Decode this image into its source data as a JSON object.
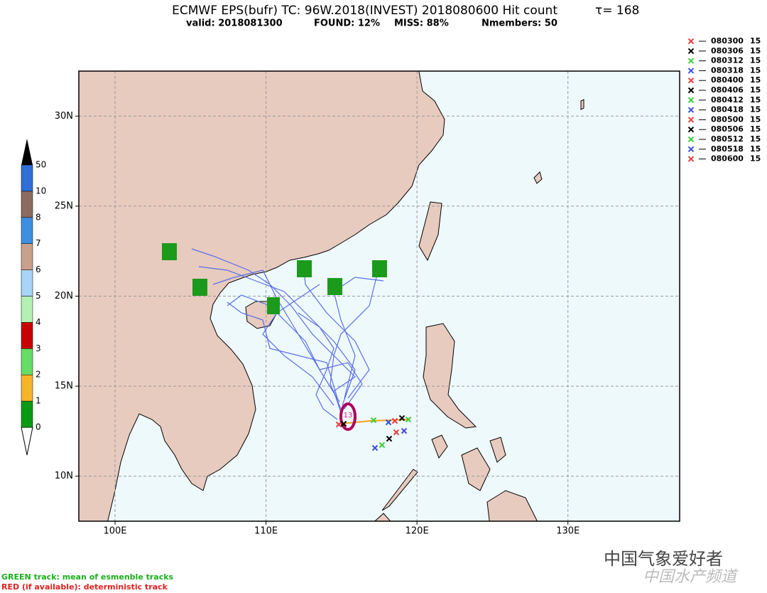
{
  "header": {
    "title": "ECMWF EPS(bufr) TC: 96W.2018(INVEST) 2018080600 Hit count",
    "tau": "τ= 168",
    "valid": "valid: 2018081300",
    "found": "FOUND: 12%",
    "miss": "MISS: 88%",
    "members": "Nmembers: 50"
  },
  "map": {
    "xlim": [
      97.6,
      137.4
    ],
    "ylim": [
      7.5,
      32.5
    ],
    "xticks": [
      {
        "value": 100,
        "label": "100E"
      },
      {
        "value": 110,
        "label": "110E"
      },
      {
        "value": 120,
        "label": "120E"
      },
      {
        "value": 130,
        "label": "130E"
      }
    ],
    "yticks": [
      {
        "value": 10,
        "label": "10N"
      },
      {
        "value": 15,
        "label": "15N"
      },
      {
        "value": 20,
        "label": "20N"
      },
      {
        "value": 25,
        "label": "25N"
      },
      {
        "value": 30,
        "label": "30N"
      }
    ],
    "storm_label": "13"
  },
  "colorbar": {
    "labels": [
      0,
      1,
      2,
      3,
      4,
      5,
      6,
      7,
      8,
      10,
      50
    ],
    "colors": [
      "#0a9a14",
      "#f5b52b",
      "#66dd66",
      "#c80000",
      "#b4f0b4",
      "#a8d4f5",
      "#c9a08c",
      "#3d8fe0",
      "#8c6b62",
      "#2f6fd6"
    ]
  },
  "legend": [
    {
      "date": "080300",
      "count": "15",
      "color": "#e8413c"
    },
    {
      "date": "080306",
      "count": "15",
      "color": "#000000"
    },
    {
      "date": "080312",
      "count": "15",
      "color": "#3dcc3d"
    },
    {
      "date": "080318",
      "count": "15",
      "color": "#3b50d8"
    },
    {
      "date": "080400",
      "count": "15",
      "color": "#e8413c"
    },
    {
      "date": "080406",
      "count": "15",
      "color": "#000000"
    },
    {
      "date": "080412",
      "count": "15",
      "color": "#3dcc3d"
    },
    {
      "date": "080418",
      "count": "15",
      "color": "#3b50d8"
    },
    {
      "date": "080500",
      "count": "15",
      "color": "#e8413c"
    },
    {
      "date": "080506",
      "count": "15",
      "color": "#000000"
    },
    {
      "date": "080512",
      "count": "15",
      "color": "#3dcc3d"
    },
    {
      "date": "080518",
      "count": "15",
      "color": "#3b50d8"
    },
    {
      "date": "080600",
      "count": "15",
      "color": "#e8413c"
    }
  ],
  "footer": {
    "green_note": "GREEN track: mean of esmenble tracks",
    "red_note": "RED (if available): deterministic track",
    "watermark": "中国气象爱好者",
    "watermark2": "中国水产频道"
  }
}
